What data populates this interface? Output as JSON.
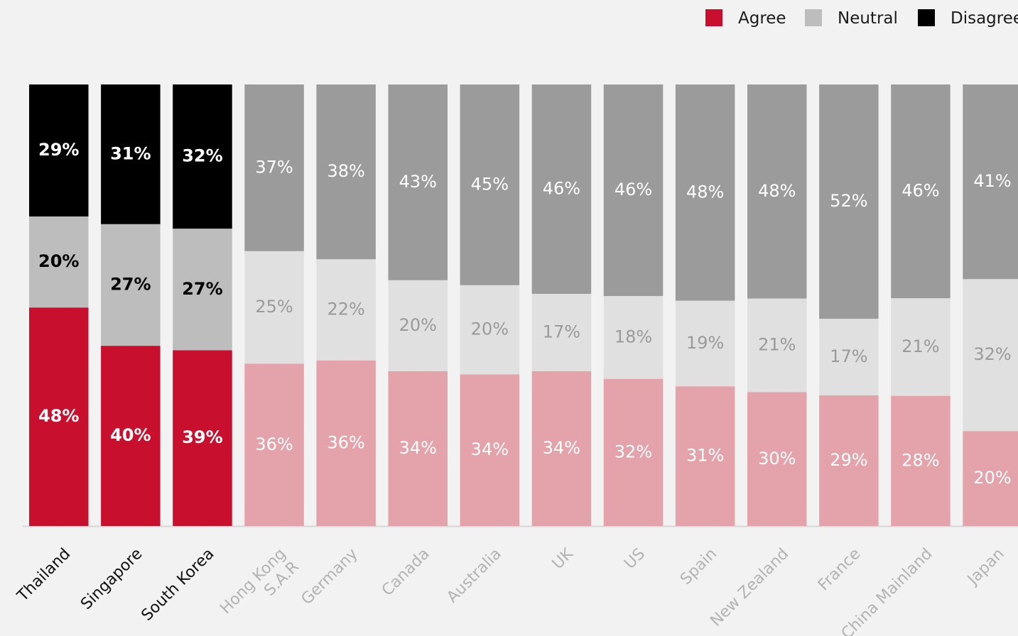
{
  "chart_data": {
    "type": "bar",
    "stacked": true,
    "percent_stacked": true,
    "legend_position": "top-right",
    "grid": false,
    "legend": [
      {
        "key": "agree",
        "label": "Agree",
        "color": "#c8102e"
      },
      {
        "key": "neutral",
        "label": "Neutral",
        "color": "#bdbdbd"
      },
      {
        "key": "disagree",
        "label": "Disagree",
        "color": "#000000"
      }
    ],
    "categories": [
      "Thailand",
      "Singapore",
      "South Korea",
      "Hong Kong\nS.A.R",
      "Germany",
      "Canada",
      "Australia",
      "UK",
      "US",
      "Spain",
      "New Zealand",
      "France",
      "China Mainland",
      "Japan"
    ],
    "highlighted": [
      true,
      true,
      true,
      false,
      false,
      false,
      false,
      false,
      false,
      false,
      false,
      false,
      false,
      false
    ],
    "series": [
      {
        "name": "Agree",
        "values": [
          48,
          40,
          39,
          36,
          36,
          34,
          34,
          34,
          32,
          31,
          30,
          29,
          28,
          20
        ]
      },
      {
        "name": "Neutral",
        "values": [
          20,
          27,
          27,
          25,
          22,
          20,
          20,
          17,
          18,
          19,
          21,
          17,
          21,
          32
        ]
      },
      {
        "name": "Disagree",
        "values": [
          29,
          31,
          32,
          37,
          38,
          43,
          45,
          46,
          46,
          48,
          48,
          52,
          46,
          41
        ]
      }
    ],
    "labels": [
      [
        "48%",
        "40%",
        "39%",
        "36%",
        "36%",
        "34%",
        "34%",
        "34%",
        "32%",
        "31%",
        "30%",
        "29%",
        "28%",
        "20%"
      ],
      [
        "20%",
        "27%",
        "27%",
        "25%",
        "22%",
        "20%",
        "20%",
        "17%",
        "18%",
        "19%",
        "21%",
        "17%",
        "21%",
        "32%"
      ],
      [
        "29%",
        "31%",
        "32%",
        "37%",
        "38%",
        "43%",
        "45%",
        "46%",
        "46%",
        "48%",
        "48%",
        "52%",
        "46%",
        "41%"
      ]
    ],
    "colors": {
      "highlight": {
        "agree": "#c8102e",
        "neutral": "#bdbdbd",
        "disagree": "#000000",
        "agree_text": "#ffffff",
        "neutral_text": "#000000",
        "disagree_text": "#ffffff",
        "cat_text": "#111111"
      },
      "muted": {
        "agree": "#e4a2aa",
        "neutral": "#e0e0e0",
        "disagree": "#9b9b9b",
        "agree_text": "#ffffff",
        "neutral_text": "#9a9a9a",
        "disagree_text": "#ffffff",
        "cat_text": "#b3b3b3"
      },
      "baseline": "#d6d6d6"
    }
  }
}
